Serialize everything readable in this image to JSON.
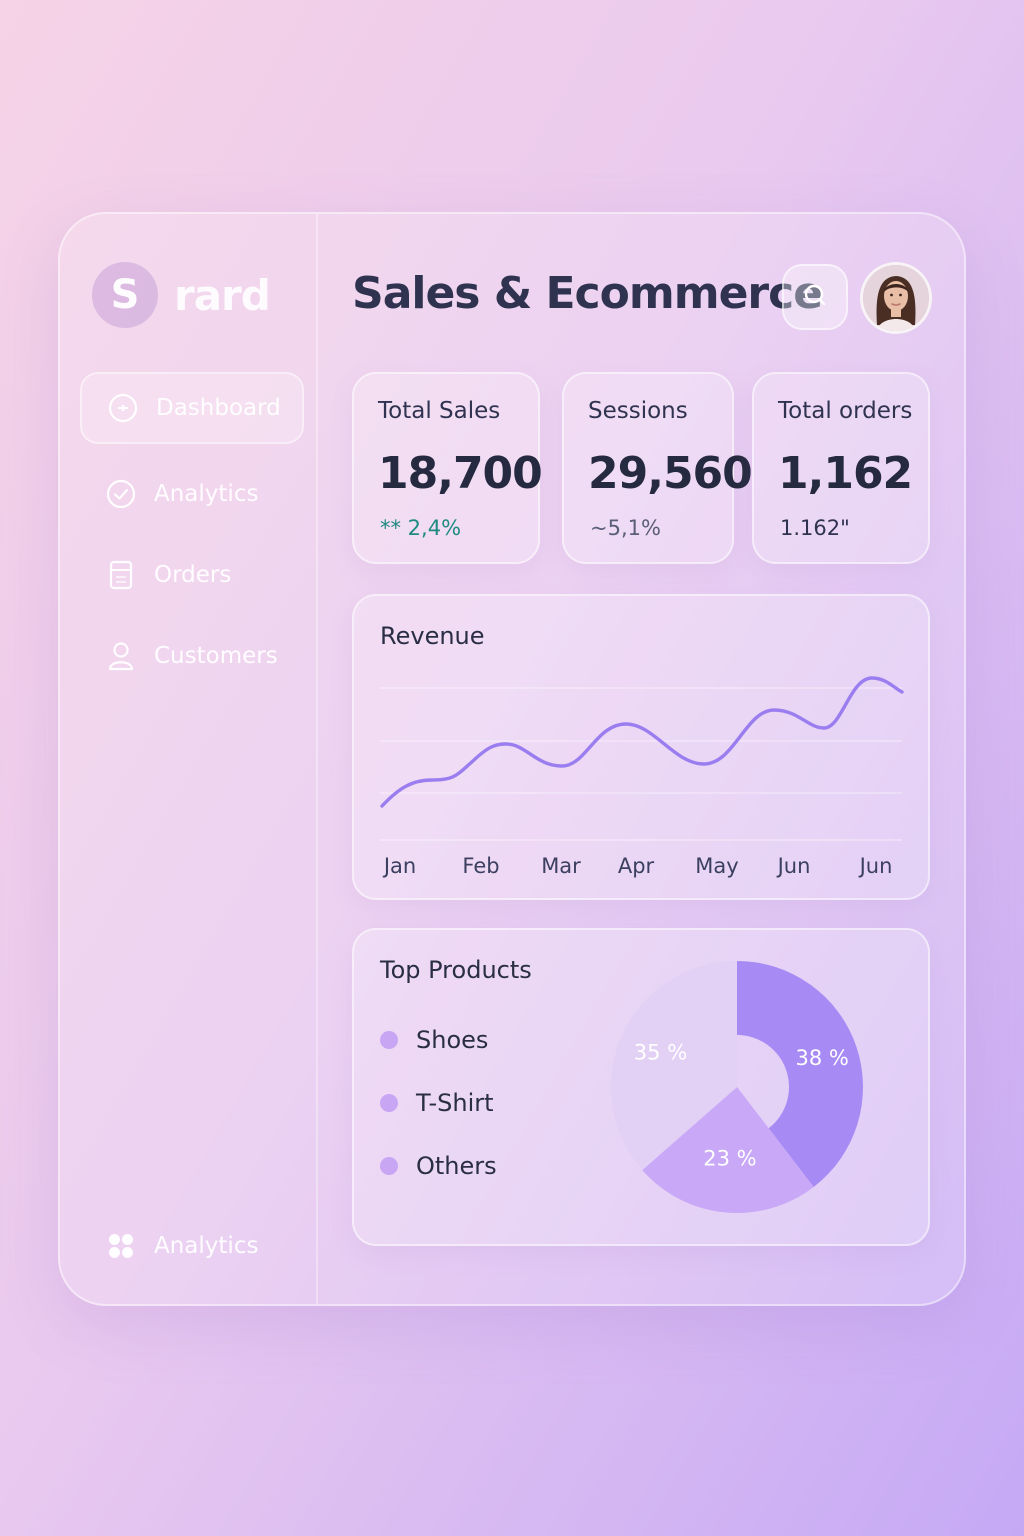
{
  "brand": {
    "logo_letter": "S",
    "name": "rard"
  },
  "sidebar": {
    "items": [
      {
        "label": "Dashboard",
        "icon": "dashboard-icon",
        "active": true
      },
      {
        "label": "Analytics",
        "icon": "check-circle-icon",
        "active": false
      },
      {
        "label": "Orders",
        "icon": "orders-icon",
        "active": false
      },
      {
        "label": "Customers",
        "icon": "user-icon",
        "active": false
      }
    ],
    "footer": {
      "label": "Analytics",
      "icon": "grid-dots-icon"
    }
  },
  "header": {
    "title": "Sales & Ecommerce",
    "search_icon": "search-icon",
    "avatar": "user-avatar"
  },
  "stats": [
    {
      "label": "Total Sales",
      "value": "18,700",
      "change": "** 2,4%",
      "change_color": "#1f8a80"
    },
    {
      "label": "Sessions",
      "value": "29,560",
      "change": "~5,1%",
      "change_color": "#5a5e78"
    },
    {
      "label": "Total orders",
      "value": "1,162",
      "change": "1.162\"",
      "change_color": "#2f3350"
    }
  ],
  "revenue": {
    "title": "Revenue",
    "months": [
      "Jan",
      "Feb",
      "Mar",
      "Apr",
      "May",
      "Jun",
      "Jun"
    ],
    "line_color": "#9a7ef0"
  },
  "products": {
    "title": "Top Products",
    "legend": [
      {
        "label": "Shoes",
        "color": "#c9a6f4"
      },
      {
        "label": "T-Shirt",
        "color": "#c9a6f4"
      },
      {
        "label": "Others",
        "color": "#c9a6f4"
      }
    ],
    "chart_data": {
      "type": "pie",
      "slices": [
        {
          "value": 38,
          "label": "38 %",
          "color": "#a88af4"
        },
        {
          "value": 23,
          "label": "23 %",
          "color": "#c8a8f7"
        },
        {
          "value": 35,
          "label": "35 %",
          "color": "#e2d0f5"
        }
      ]
    }
  }
}
